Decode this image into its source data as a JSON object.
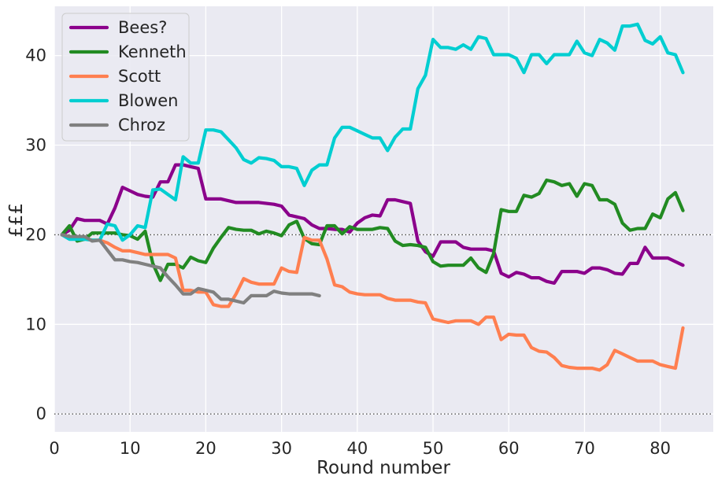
{
  "chart_data": {
    "type": "line",
    "title": "",
    "xlabel": "Round number",
    "ylabel": "£££",
    "xlim": [
      0,
      87
    ],
    "ylim": [
      -2,
      45.5
    ],
    "xticks": [
      0,
      10,
      20,
      30,
      40,
      50,
      60,
      70,
      80
    ],
    "yticks": [
      0,
      10,
      20,
      30,
      40
    ],
    "reference_lines": [
      20,
      0
    ],
    "grid": true,
    "legend": "top-left",
    "series": [
      {
        "name": "Bees?",
        "color": "#8b008b",
        "x": [
          1,
          2,
          3,
          4,
          5,
          6,
          7,
          8,
          9,
          10,
          11,
          12,
          13,
          14,
          15,
          16,
          17,
          18,
          19,
          20,
          21,
          22,
          23,
          24,
          25,
          26,
          27,
          28,
          29,
          30,
          31,
          32,
          33,
          34,
          35,
          36,
          37,
          38,
          39,
          40,
          41,
          42,
          43,
          44,
          45,
          46,
          47,
          48,
          49,
          50,
          51,
          52,
          53,
          54,
          55,
          56,
          57,
          58,
          59,
          60,
          61,
          62,
          63,
          64,
          65,
          66,
          67,
          68,
          69,
          70,
          71,
          72,
          73,
          74,
          75,
          76,
          77,
          78,
          79,
          80,
          81,
          82,
          83
        ],
        "y": [
          20,
          20.5,
          21.8,
          21.6,
          21.6,
          21.6,
          21.2,
          23,
          25.3,
          24.9,
          24.5,
          24.3,
          24.2,
          25.9,
          25.9,
          27.8,
          27.8,
          27.6,
          27.4,
          24,
          24,
          24,
          23.8,
          23.6,
          23.6,
          23.6,
          23.6,
          23.5,
          23.4,
          23.2,
          22.2,
          22,
          21.8,
          21.1,
          20.7,
          20.7,
          20.6,
          20.6,
          20.3,
          21.3,
          21.9,
          22.2,
          22.1,
          23.9,
          23.9,
          23.7,
          23.5,
          19.3,
          18.1,
          17.6,
          19.2,
          19.2,
          19.2,
          18.6,
          18.4,
          18.4,
          18.4,
          18.2,
          15.7,
          15.3,
          15.8,
          15.6,
          15.2,
          15.2,
          14.8,
          14.6,
          15.9,
          15.9,
          15.9,
          15.7,
          16.3,
          16.3,
          16.1,
          15.7,
          15.6,
          16.8,
          16.8,
          18.6,
          17.4,
          17.4,
          17.4,
          17,
          16.6
        ]
      },
      {
        "name": "Kenneth",
        "color": "#228b22",
        "x": [
          1,
          2,
          3,
          4,
          5,
          6,
          7,
          8,
          9,
          10,
          11,
          12,
          13,
          14,
          15,
          16,
          17,
          18,
          19,
          20,
          21,
          22,
          23,
          24,
          25,
          26,
          27,
          28,
          29,
          30,
          31,
          32,
          33,
          34,
          35,
          36,
          37,
          38,
          39,
          40,
          41,
          42,
          43,
          44,
          45,
          46,
          47,
          48,
          49,
          50,
          51,
          52,
          53,
          54,
          55,
          56,
          57,
          58,
          59,
          60,
          61,
          62,
          63,
          64,
          65,
          66,
          67,
          68,
          69,
          70,
          71,
          72,
          73,
          74,
          75,
          76,
          77,
          78,
          79,
          80,
          81,
          82,
          83
        ],
        "y": [
          20,
          21,
          19.3,
          19.5,
          20.2,
          20.2,
          20.2,
          20.2,
          20,
          19.9,
          19.5,
          20.4,
          16.8,
          14.9,
          16.7,
          16.7,
          16.3,
          17.5,
          17.1,
          16.9,
          18.5,
          19.7,
          20.8,
          20.6,
          20.5,
          20.5,
          20.1,
          20.4,
          20.2,
          19.9,
          21.1,
          21.5,
          19.6,
          19,
          18.9,
          21,
          21,
          20.1,
          20.9,
          20.6,
          20.6,
          20.6,
          20.8,
          20.7,
          19.3,
          18.8,
          18.9,
          18.8,
          18.6,
          17,
          16.5,
          16.6,
          16.6,
          16.6,
          17.4,
          16.3,
          15.8,
          17.9,
          22.8,
          22.6,
          22.6,
          24.4,
          24.2,
          24.6,
          26.1,
          25.9,
          25.5,
          25.7,
          24.3,
          25.7,
          25.5,
          23.9,
          23.9,
          23.4,
          21.3,
          20.5,
          20.7,
          20.7,
          22.3,
          21.9,
          24,
          24.7,
          22.7
        ]
      },
      {
        "name": "Scott",
        "color": "#ff7f50",
        "x": [
          1,
          2,
          3,
          4,
          5,
          6,
          7,
          8,
          9,
          10,
          11,
          12,
          13,
          14,
          15,
          16,
          17,
          18,
          19,
          20,
          21,
          22,
          23,
          24,
          25,
          26,
          27,
          28,
          29,
          30,
          31,
          32,
          33,
          34,
          35,
          36,
          37,
          38,
          39,
          40,
          41,
          42,
          43,
          44,
          45,
          46,
          47,
          48,
          49,
          50,
          51,
          52,
          53,
          54,
          55,
          56,
          57,
          58,
          59,
          60,
          61,
          62,
          63,
          64,
          65,
          66,
          67,
          68,
          69,
          70,
          71,
          72,
          73,
          74,
          75,
          76,
          77,
          78,
          79,
          80,
          81,
          82,
          83
        ],
        "y": [
          20,
          19.8,
          19.6,
          19.6,
          19.4,
          19.4,
          19.1,
          18.6,
          18.2,
          18.2,
          18,
          17.8,
          17.8,
          17.8,
          17.8,
          17.4,
          13.8,
          13.8,
          13.6,
          13.6,
          12.2,
          12,
          12,
          13.4,
          15.1,
          14.7,
          14.5,
          14.5,
          14.5,
          16.3,
          15.9,
          15.8,
          19.7,
          19.4,
          19.4,
          17.3,
          14.4,
          14.2,
          13.6,
          13.4,
          13.3,
          13.3,
          13.3,
          12.9,
          12.7,
          12.7,
          12.7,
          12.5,
          12.4,
          10.6,
          10.4,
          10.2,
          10.4,
          10.4,
          10.4,
          10,
          10.8,
          10.8,
          8.3,
          8.9,
          8.8,
          8.8,
          7.4,
          7,
          6.9,
          6.3,
          5.4,
          5.2,
          5.1,
          5.1,
          5.1,
          4.9,
          5.5,
          7.1,
          6.7,
          6.3,
          5.9,
          5.9,
          5.9,
          5.5,
          5.3,
          5.1,
          9.6
        ]
      },
      {
        "name": "Blowen",
        "color": "#00ced1",
        "x": [
          1,
          2,
          3,
          4,
          5,
          6,
          7,
          8,
          9,
          10,
          11,
          12,
          13,
          14,
          15,
          16,
          17,
          18,
          19,
          20,
          21,
          22,
          23,
          24,
          25,
          26,
          27,
          28,
          29,
          30,
          31,
          32,
          33,
          34,
          35,
          36,
          37,
          38,
          39,
          40,
          41,
          42,
          43,
          44,
          45,
          46,
          47,
          48,
          49,
          50,
          51,
          52,
          53,
          54,
          55,
          56,
          57,
          58,
          59,
          60,
          61,
          62,
          63,
          64,
          65,
          66,
          67,
          68,
          69,
          70,
          71,
          72,
          73,
          74,
          75,
          76,
          77,
          78,
          79,
          80,
          81,
          82,
          83
        ],
        "y": [
          20,
          19.5,
          19.5,
          19.5,
          19.4,
          19.4,
          21.2,
          21,
          19.4,
          20,
          21,
          20.8,
          25,
          25.1,
          24.5,
          23.9,
          28.7,
          28,
          28,
          31.7,
          31.7,
          31.5,
          30.6,
          29.7,
          28.4,
          28,
          28.6,
          28.5,
          28.3,
          27.6,
          27.6,
          27.4,
          25.5,
          27.2,
          27.8,
          27.8,
          30.8,
          32,
          32,
          31.6,
          31.2,
          30.8,
          30.8,
          29.4,
          30.9,
          31.8,
          31.8,
          36.3,
          37.8,
          41.8,
          40.9,
          40.9,
          40.7,
          41.2,
          40.7,
          42.1,
          41.9,
          40.1,
          40.1,
          40.1,
          39.7,
          38.1,
          40.1,
          40.1,
          39.1,
          40.1,
          40.1,
          40.1,
          41.6,
          40.3,
          40,
          41.8,
          41.4,
          40.6,
          43.3,
          43.3,
          43.5,
          41.7,
          41.3,
          42.1,
          40.3,
          40.1,
          38.1
        ]
      },
      {
        "name": "Chroz",
        "color": "#808080",
        "x": [
          1,
          2,
          3,
          4,
          5,
          6,
          7,
          8,
          9,
          10,
          11,
          12,
          13,
          14,
          15,
          16,
          17,
          18,
          19,
          20,
          21,
          22,
          23,
          24,
          25,
          26,
          27,
          28,
          29,
          30,
          31,
          32,
          33,
          34,
          35
        ],
        "y": [
          20,
          19.8,
          19.8,
          19.8,
          19.3,
          19.4,
          18.3,
          17.2,
          17.2,
          17,
          16.9,
          16.7,
          16.5,
          16.3,
          15.3,
          14.4,
          13.4,
          13.4,
          14,
          13.8,
          13.6,
          12.8,
          12.8,
          12.6,
          12.4,
          13.2,
          13.2,
          13.2,
          13.7,
          13.5,
          13.4,
          13.4,
          13.4,
          13.4,
          13.2
        ]
      }
    ]
  }
}
